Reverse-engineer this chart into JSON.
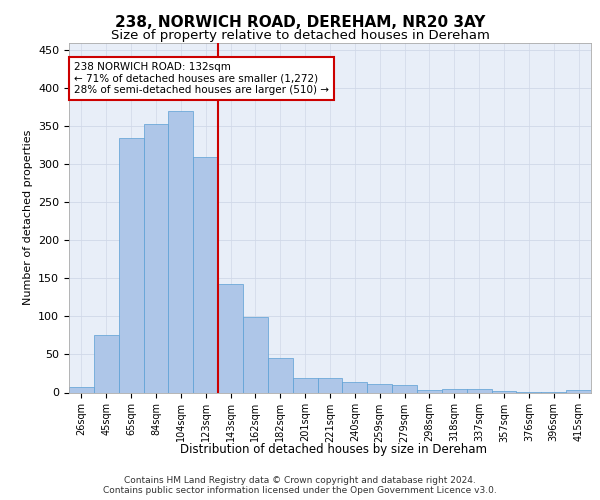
{
  "title1": "238, NORWICH ROAD, DEREHAM, NR20 3AY",
  "title2": "Size of property relative to detached houses in Dereham",
  "xlabel": "Distribution of detached houses by size in Dereham",
  "ylabel": "Number of detached properties",
  "categories": [
    "26sqm",
    "45sqm",
    "65sqm",
    "84sqm",
    "104sqm",
    "123sqm",
    "143sqm",
    "162sqm",
    "182sqm",
    "201sqm",
    "221sqm",
    "240sqm",
    "259sqm",
    "279sqm",
    "298sqm",
    "318sqm",
    "337sqm",
    "357sqm",
    "376sqm",
    "396sqm",
    "415sqm"
  ],
  "values": [
    7,
    75,
    334,
    353,
    370,
    310,
    143,
    99,
    46,
    19,
    19,
    14,
    11,
    10,
    3,
    5,
    5,
    2,
    1,
    1,
    3
  ],
  "bar_color": "#aec6e8",
  "bar_edge_color": "#5a9fd4",
  "vline_x_index": 5.5,
  "vline_color": "#cc0000",
  "annotation_text": "238 NORWICH ROAD: 132sqm\n← 71% of detached houses are smaller (1,272)\n28% of semi-detached houses are larger (510) →",
  "annotation_box_color": "#ffffff",
  "annotation_box_edge": "#cc0000",
  "ylim": [
    0,
    460
  ],
  "yticks": [
    0,
    50,
    100,
    150,
    200,
    250,
    300,
    350,
    400,
    450
  ],
  "grid_color": "#d0d8e8",
  "background_color": "#e8eef8",
  "footer_line1": "Contains HM Land Registry data © Crown copyright and database right 2024.",
  "footer_line2": "Contains public sector information licensed under the Open Government Licence v3.0.",
  "title1_fontsize": 11,
  "title2_fontsize": 9.5,
  "xlabel_fontsize": 8.5,
  "ylabel_fontsize": 8,
  "tick_fontsize": 7,
  "annotation_fontsize": 7.5,
  "footer_fontsize": 6.5
}
